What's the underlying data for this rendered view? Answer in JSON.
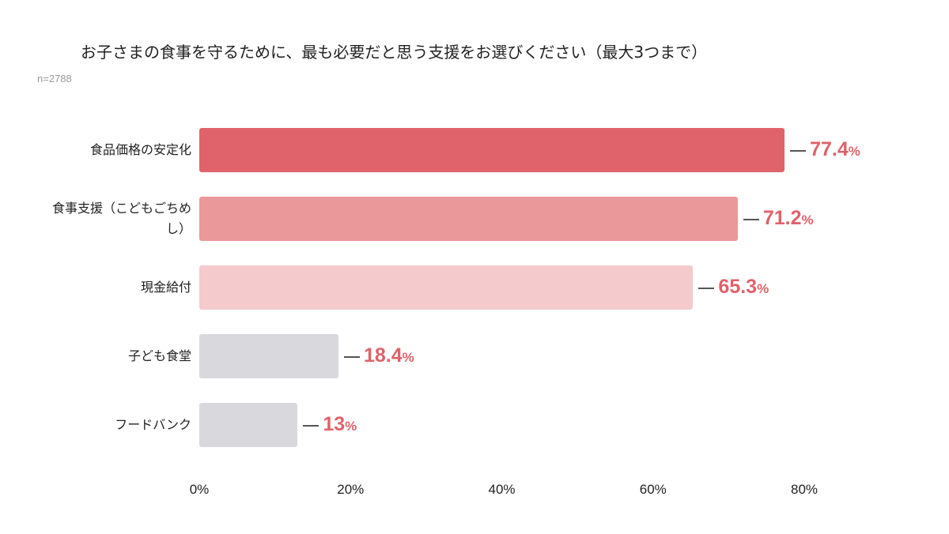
{
  "chart_data": {
    "type": "bar",
    "orientation": "horizontal",
    "title": "お子さまの食事を守るために、最も必要だと思う支援をお選びください（最大3つまで）",
    "subtitle": "n=2788",
    "categories": [
      "食品価格の安定化",
      "食事支援（こどもごちめし）",
      "現金給付",
      "子ども食堂",
      "フードバンク"
    ],
    "values": [
      77.4,
      71.2,
      65.3,
      18.4,
      13
    ],
    "value_labels": [
      "77.4",
      "71.2",
      "65.3",
      "18.4",
      "13"
    ],
    "value_unit": "%",
    "bar_colors": [
      "#e0636b",
      "#eb989b",
      "#f4cacd",
      "#d9d8dc",
      "#d9d8dc"
    ],
    "label_color": "#e0616a",
    "xlim": [
      0,
      80
    ],
    "xticks": [
      "0%",
      "20%",
      "40%",
      "60%",
      "80%"
    ],
    "grid": false,
    "legend": "none"
  }
}
